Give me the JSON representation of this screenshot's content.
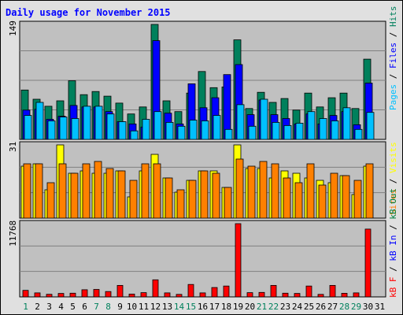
{
  "title": "Daily usage for November 2015",
  "colors": {
    "hits": "#00805c",
    "files": "#0000ff",
    "pages": "#00c0ff",
    "visits": "#ffff00",
    "sites": "#ff8000",
    "kbin": "#0080c0",
    "kbout": "#008040",
    "kbf": "#ff0000",
    "panel_bg": "#c0c0c0",
    "frame_bg": "#e0e0e0",
    "weekday_label": "#000000",
    "weekend_label": "#00805c"
  },
  "chart_data": [
    {
      "type": "bar",
      "panel": "hits-files-pages",
      "y_max_label": "149",
      "ylim": [
        0,
        149
      ],
      "x": [
        1,
        2,
        3,
        4,
        5,
        6,
        7,
        8,
        9,
        10,
        11,
        12,
        13,
        14,
        15,
        16,
        17,
        18,
        19,
        20,
        21,
        22,
        23,
        24,
        25,
        26,
        27,
        28,
        29,
        30,
        31
      ],
      "series": [
        {
          "name": "Hits",
          "color_key": "hits",
          "values": [
            64,
            52,
            43,
            50,
            76,
            58,
            62,
            56,
            47,
            33,
            42,
            149,
            50,
            36,
            60,
            88,
            67,
            68,
            129,
            40,
            61,
            48,
            53,
            38,
            60,
            42,
            54,
            60,
            40,
            104,
            0
          ]
        },
        {
          "name": "Files",
          "color_key": "files",
          "values": [
            38,
            39,
            26,
            30,
            44,
            42,
            42,
            36,
            23,
            20,
            16,
            128,
            34,
            20,
            72,
            41,
            54,
            84,
            97,
            32,
            51,
            32,
            27,
            20,
            33,
            20,
            31,
            36,
            19,
            73,
            0
          ]
        },
        {
          "name": "Pages",
          "color_key": "pages",
          "values": [
            31,
            48,
            24,
            29,
            27,
            43,
            43,
            33,
            23,
            11,
            26,
            36,
            22,
            17,
            25,
            24,
            31,
            13,
            45,
            17,
            52,
            22,
            18,
            21,
            36,
            27,
            24,
            41,
            13,
            35,
            0
          ]
        }
      ]
    },
    {
      "type": "bar",
      "panel": "visits-sites",
      "y_max_label": "31",
      "ylim": [
        0,
        31
      ],
      "x": [
        1,
        2,
        3,
        4,
        5,
        6,
        7,
        8,
        9,
        10,
        11,
        12,
        13,
        14,
        15,
        16,
        17,
        18,
        19,
        20,
        21,
        22,
        23,
        24,
        25,
        26,
        27,
        28,
        29,
        30,
        31
      ],
      "series": [
        {
          "name": "Visits",
          "color_key": "visits",
          "values": [
            22,
            23,
            12,
            31,
            19,
            20,
            19,
            19,
            20,
            9,
            20,
            27,
            17,
            11,
            16,
            20,
            20,
            13,
            31,
            21,
            21,
            17,
            20,
            19,
            17,
            16,
            15,
            18,
            10,
            22,
            0
          ]
        },
        {
          "name": "Sites",
          "color_key": "sites",
          "values": [
            23,
            23,
            15,
            23,
            19,
            23,
            24,
            21,
            20,
            16,
            23,
            23,
            17,
            12,
            16,
            20,
            19,
            13,
            25,
            22,
            24,
            23,
            17,
            15,
            23,
            14,
            19,
            18,
            16,
            23,
            0
          ]
        }
      ]
    },
    {
      "type": "bar",
      "panel": "kilobytes",
      "y_max_label": "11768",
      "ylim": [
        0,
        11768
      ],
      "x": [
        1,
        2,
        3,
        4,
        5,
        6,
        7,
        8,
        9,
        10,
        11,
        12,
        13,
        14,
        15,
        16,
        17,
        18,
        19,
        20,
        21,
        22,
        23,
        24,
        25,
        26,
        27,
        28,
        29,
        30,
        31
      ],
      "series": [
        {
          "name": "kB F",
          "color_key": "kbf",
          "values": [
            1050,
            650,
            420,
            560,
            600,
            1150,
            1200,
            860,
            1850,
            450,
            680,
            2750,
            650,
            400,
            2000,
            650,
            1500,
            1750,
            11768,
            680,
            720,
            1850,
            600,
            560,
            1750,
            400,
            1850,
            580,
            650,
            10900,
            0
          ]
        }
      ]
    }
  ],
  "x_labels": [
    "1",
    "2",
    "3",
    "4",
    "5",
    "6",
    "7",
    "8",
    "9",
    "10",
    "11",
    "12",
    "13",
    "14",
    "15",
    "16",
    "17",
    "18",
    "19",
    "20",
    "21",
    "22",
    "23",
    "24",
    "25",
    "26",
    "27",
    "28",
    "29",
    "30",
    "31"
  ],
  "weekend_days": [
    1,
    7,
    8,
    14,
    15,
    21,
    22,
    28,
    29
  ],
  "right_legends": {
    "top": [
      {
        "text": "Pages",
        "color_key": "pages"
      },
      {
        "text": " / ",
        "color_key": "weekday_label"
      },
      {
        "text": "Files",
        "color_key": "files"
      },
      {
        "text": " / ",
        "color_key": "weekday_label"
      },
      {
        "text": "Hits",
        "color_key": "hits"
      }
    ],
    "middle": [
      {
        "text": "Sites",
        "color_key": "sites"
      },
      {
        "text": " / ",
        "color_key": "weekday_label"
      },
      {
        "text": "Visits",
        "color_key": "visits"
      }
    ],
    "bottom": [
      {
        "text": "kB F",
        "color_key": "kbf"
      },
      {
        "text": " / ",
        "color_key": "weekday_label"
      },
      {
        "text": "kB In",
        "color_key": "files"
      },
      {
        "text": " / ",
        "color_key": "weekday_label"
      },
      {
        "text": "kB Out",
        "color_key": "kbout"
      }
    ]
  }
}
